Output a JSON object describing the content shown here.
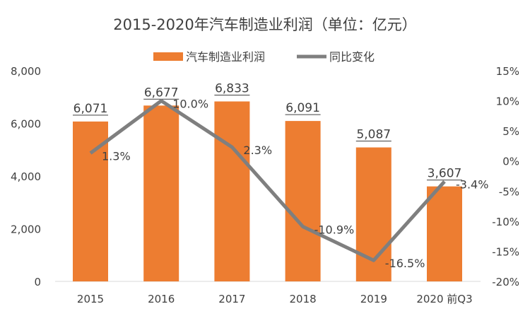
{
  "chart_data": {
    "type": "bar+line",
    "title": "2015-2020年汽车制造业利润（单位：亿元）",
    "categories": [
      "2015",
      "2016",
      "2017",
      "2018",
      "2019",
      "2020 前Q3"
    ],
    "series": [
      {
        "name": "汽车制造业利润",
        "type": "bar",
        "axis": "left",
        "color": "#ED7D31",
        "values": [
          6071,
          6677,
          6833,
          6091,
          5087,
          3607
        ],
        "labels": [
          "6,071",
          "6,677",
          "6,833",
          "6,091",
          "5,087",
          "3,607"
        ]
      },
      {
        "name": "同比变化",
        "type": "line",
        "axis": "right",
        "color": "#7F7F7F",
        "values": [
          1.3,
          10.0,
          2.3,
          -10.9,
          -16.5,
          -3.4
        ],
        "labels": [
          "1.3%",
          "10.0%",
          "2.3%",
          "-10.9%",
          "-16.5%",
          "-3.4%"
        ]
      }
    ],
    "left_axis": {
      "range": [
        0,
        8000
      ],
      "ticks": [
        "0",
        "2,000",
        "4,000",
        "6,000",
        "8,000"
      ]
    },
    "right_axis": {
      "range": [
        -20,
        15
      ],
      "ticks": [
        "-20%",
        "-15%",
        "-10%",
        "-5%",
        "0%",
        "5%",
        "10%",
        "15%"
      ]
    },
    "grid": false,
    "legend": "top"
  }
}
